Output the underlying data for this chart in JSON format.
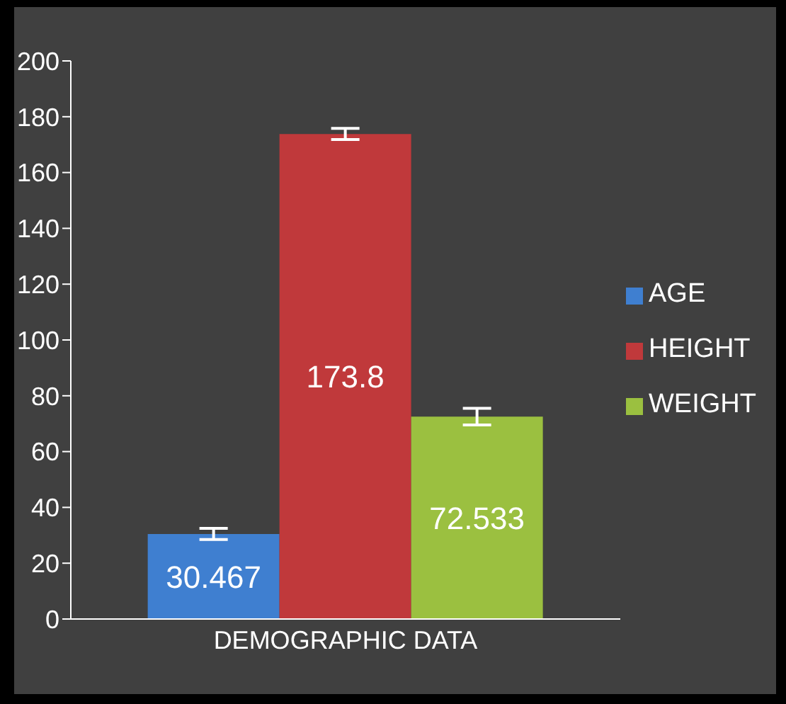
{
  "chart_data": {
    "type": "bar",
    "categories": [
      "DEMOGRAPHIC DATA"
    ],
    "series": [
      {
        "name": "AGE",
        "color": "#3f7fd0",
        "values": [
          30.467
        ],
        "errors": [
          2
        ]
      },
      {
        "name": "HEIGHT",
        "color": "#c0393b",
        "values": [
          173.8
        ],
        "errors": [
          2
        ]
      },
      {
        "name": "WEIGHT",
        "color": "#9bc040",
        "values": [
          72.533
        ],
        "errors": [
          3
        ]
      }
    ],
    "ylim": [
      0,
      200
    ],
    "yticks": [
      0,
      20,
      40,
      60,
      80,
      100,
      120,
      140,
      160,
      180,
      200
    ],
    "grid": false,
    "legend": "right",
    "data_labels": true
  }
}
